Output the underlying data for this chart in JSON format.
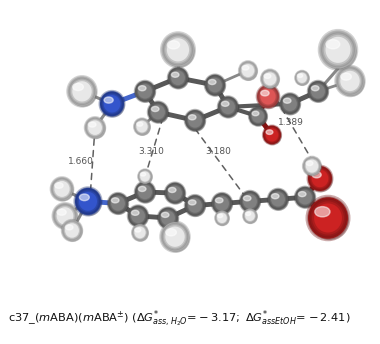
{
  "figure_width": 3.8,
  "figure_height": 3.44,
  "dpi": 100,
  "background_color": "#ffffff",
  "distances": [
    "1.660",
    "3.310",
    "3.180",
    "1.389"
  ],
  "dist_color": "#555555",
  "bond_color": "#707070",
  "C_color": "#808080",
  "H_color": "#e8e8e8",
  "N_color": "#3355cc",
  "O_color": "#cc2222",
  "O_light": "#dd5555",
  "dashed_color": "#606060"
}
